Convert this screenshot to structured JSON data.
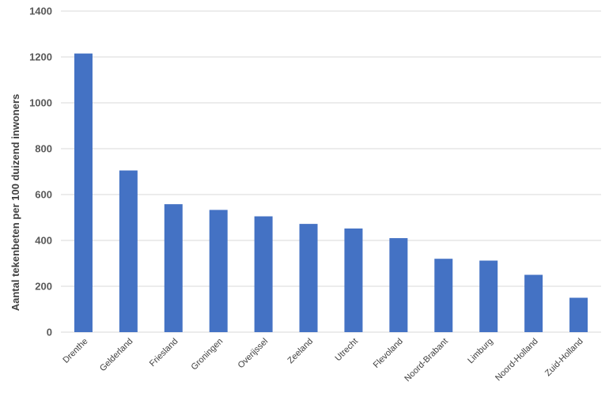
{
  "chart_data": {
    "type": "bar",
    "title": "",
    "xlabel": "",
    "ylabel": "Aantal tekenbeten per 100 duizend inwoners",
    "categories": [
      "Drenthe",
      "Gelderland",
      "Friesland",
      "Groningen",
      "Overijssel",
      "Zeeland",
      "Utrecht",
      "Flevoland",
      "Noord-Brabant",
      "Limburg",
      "Noord-Holland",
      "Zuid-Holland"
    ],
    "values": [
      1215,
      705,
      558,
      533,
      505,
      472,
      452,
      410,
      320,
      312,
      250,
      150
    ],
    "ylim": [
      0,
      1400
    ],
    "yticks": [
      "0",
      "200",
      "400",
      "600",
      "800",
      "1000",
      "1200",
      "1400"
    ],
    "grid": true,
    "legend": "none",
    "bar_color": "#4472c4"
  }
}
